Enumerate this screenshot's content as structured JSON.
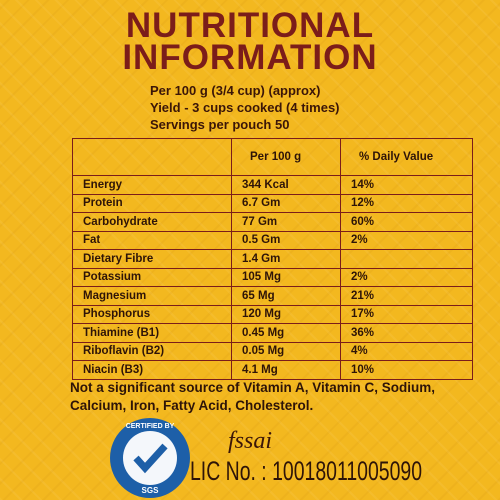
{
  "header": {
    "title": [
      "NUTRITIONAL",
      "INFORMATION"
    ],
    "lines": [
      "Per 100 g (3/4 cup) (approx)",
      "Yield - 3 cups cooked (4 times)",
      "Servings per pouch 50"
    ]
  },
  "table": {
    "columns": [
      "Per 100 g",
      "% Daily Value"
    ],
    "rows": [
      [
        "Energy",
        "344 Kcal",
        "14%"
      ],
      [
        "Protein",
        "6.7 Gm",
        "12%"
      ],
      [
        "Carbohydrate",
        "77 Gm",
        "60%"
      ],
      [
        "Fat",
        "0.5 Gm",
        "2%"
      ],
      [
        "Dietary Fibre",
        "1.4 Gm"
      ],
      [
        "Potassium",
        "105 Mg",
        "2%"
      ],
      [
        "Magnesium",
        "65 Mg",
        "21%"
      ],
      [
        "Phosphorus",
        "120 Mg",
        "17%"
      ],
      [
        "Thiamine (B1)",
        "0.45 Mg",
        "36%"
      ],
      [
        "Riboflavin (B2)",
        "0.05 Mg",
        "4%"
      ],
      [
        "Niacin (B3)",
        "4.1 Mg",
        "10%"
      ]
    ]
  },
  "footer": {
    "note": "Not a significant source of Vitamin A, Vitamin C, Sodium, Calcium, Iron, Fatty Acid, Cholesterol.",
    "badge": [
      "CERTIFIED BY",
      "SGS"
    ],
    "fssai": "fssai",
    "license": "LIC No. : 10018011005090"
  }
}
